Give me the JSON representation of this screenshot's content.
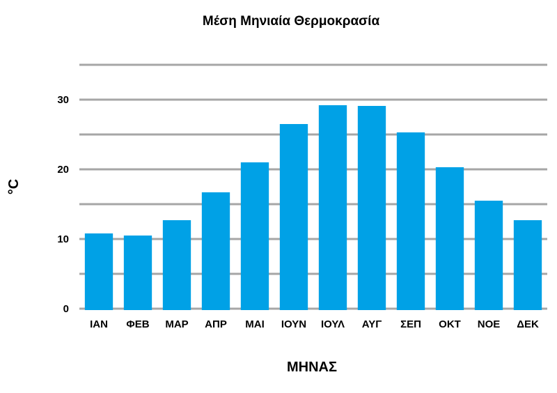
{
  "chart_data": {
    "type": "bar",
    "title": "Μέση Μηνιαία Θερμοκρασία",
    "xlabel": "ΜΗΝΑΣ",
    "ylabel": "°C",
    "categories": [
      "ΙΑΝ",
      "ΦΕΒ",
      "ΜΑΡ",
      "ΑΠΡ",
      "ΜΑΙ",
      "ΙΟΥΝ",
      "ΙΟΥΛ",
      "ΑΥΓ",
      "ΣΕΠ",
      "ΟΚΤ",
      "ΝΟΕ",
      "ΔΕΚ"
    ],
    "values": [
      10.8,
      10.5,
      12.7,
      16.7,
      21.0,
      26.5,
      29.2,
      29.1,
      25.3,
      20.3,
      15.5,
      12.7
    ],
    "ylim": [
      0,
      35
    ],
    "yticks": [
      0,
      10,
      20,
      30
    ],
    "grid": true,
    "bar_color": "#00a1e6",
    "grid_color": "#a6a6a6"
  }
}
